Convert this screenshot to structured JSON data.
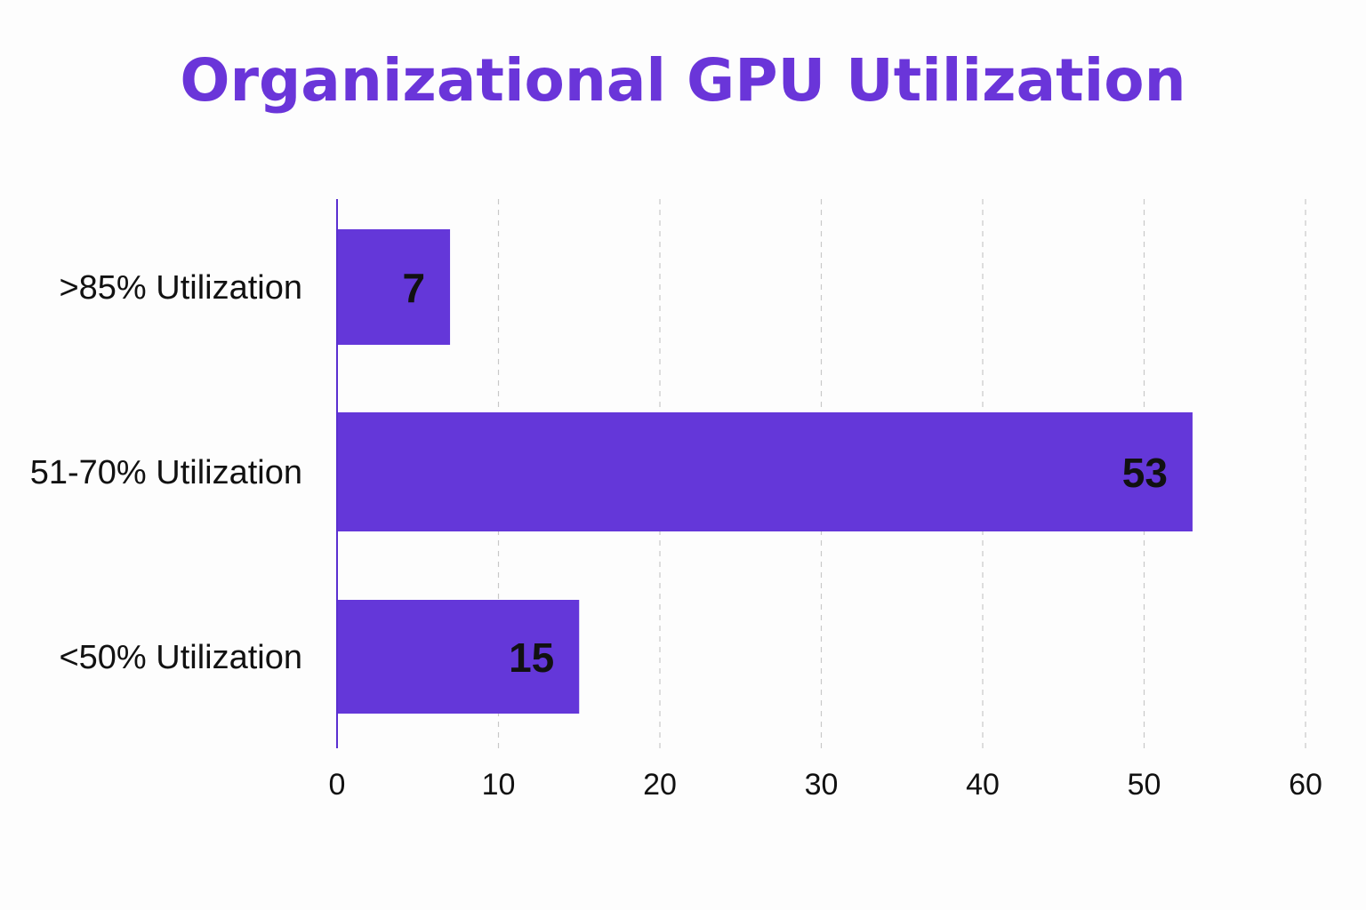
{
  "chart_data": {
    "type": "bar",
    "orientation": "horizontal",
    "title": "Organizational GPU Utilization",
    "categories": [
      ">85% Utilization",
      "51-70% Utilization",
      "<50% Utilization"
    ],
    "values": [
      7,
      53,
      15
    ],
    "value_labels": [
      "7",
      "53",
      "15"
    ],
    "x_ticks": [
      "0",
      "10",
      "20",
      "30",
      "40",
      "50",
      "60"
    ],
    "xlim": [
      0,
      60
    ],
    "xlabel": "",
    "ylabel": "",
    "grid": "vertical dashed",
    "colors": {
      "bar": "#6437d9",
      "title": "#6a35d9",
      "axis": "#5a2fd0",
      "grid": "#c8c8c8",
      "text": "#111111"
    }
  }
}
